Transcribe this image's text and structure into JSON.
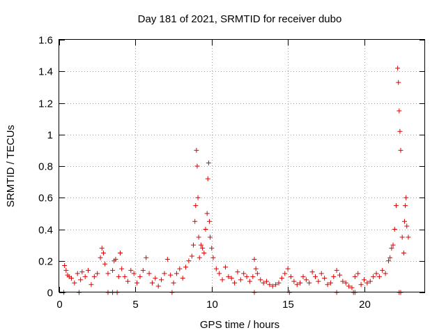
{
  "chart_data": {
    "type": "scatter",
    "title": "Day 181 of 2021, SRMTID for receiver dubo",
    "xlabel": "GPS time / hours",
    "ylabel": "SRMTID / TECUs",
    "xlim": [
      0,
      24
    ],
    "ylim": [
      0,
      1.6
    ],
    "xticks": [
      0,
      5,
      10,
      15,
      20
    ],
    "xtick_labels": [
      "0",
      "5",
      "10",
      "15",
      "20"
    ],
    "yticks": [
      0,
      0.2,
      0.4,
      0.6,
      0.8,
      1,
      1.2,
      1.4,
      1.6
    ],
    "ytick_labels": [
      "0",
      "0.2",
      "0.4",
      "0.6",
      "0.8",
      "1",
      "1.2",
      "1.4",
      "1.6"
    ],
    "grid": true,
    "marker": "plus",
    "color": "#e00000",
    "series": [
      {
        "name": "SRMTID",
        "x": [
          0.35,
          0.45,
          0.55,
          0.65,
          0.8,
          1.0,
          1.2,
          1.4,
          1.5,
          1.7,
          1.9,
          2.1,
          2.3,
          2.5,
          2.7,
          2.8,
          2.9,
          3.0,
          3.2,
          3.5,
          3.6,
          3.7,
          3.9,
          4.0,
          4.1,
          4.3,
          4.5,
          4.7,
          4.9,
          5.1,
          5.3,
          5.5,
          5.7,
          5.9,
          6.1,
          6.3,
          6.5,
          6.7,
          6.9,
          7.1,
          7.3,
          7.5,
          7.7,
          7.9,
          8.1,
          8.3,
          8.5,
          8.7,
          8.8,
          8.9,
          8.95,
          9.0,
          9.05,
          9.1,
          9.15,
          9.2,
          9.3,
          9.4,
          9.5,
          9.6,
          9.7,
          9.75,
          9.8,
          9.85,
          9.9,
          10.0,
          10.1,
          10.3,
          10.5,
          10.7,
          10.9,
          11.1,
          11.3,
          11.5,
          11.7,
          11.9,
          12.1,
          12.3,
          12.5,
          12.7,
          12.8,
          12.9,
          13.0,
          13.2,
          13.4,
          13.6,
          13.8,
          14.0,
          14.2,
          14.4,
          14.6,
          14.8,
          15.0,
          15.2,
          15.4,
          15.6,
          15.8,
          16.0,
          16.2,
          16.4,
          16.6,
          16.8,
          17.0,
          17.2,
          17.4,
          17.6,
          17.8,
          18.0,
          18.2,
          18.4,
          18.6,
          18.8,
          19.0,
          19.2,
          19.4,
          19.6,
          19.8,
          20.0,
          20.2,
          20.4,
          20.6,
          20.8,
          21.0,
          21.2,
          21.4,
          21.6,
          21.7,
          21.8,
          21.9,
          22.0,
          22.1,
          22.2,
          22.25,
          22.3,
          22.35,
          22.4,
          22.5,
          22.6,
          22.65,
          22.7,
          22.75,
          22.8,
          22.9,
          0.3,
          1.3,
          3.2,
          3.5,
          3.8,
          7.4,
          12.8,
          15.1,
          18.2,
          19.3,
          19.4,
          22.3,
          22.4
        ],
        "y": [
          0.17,
          0.14,
          0.11,
          0.1,
          0.09,
          0.06,
          0.12,
          0.08,
          0.13,
          0.1,
          0.14,
          0.05,
          0.1,
          0.12,
          0.22,
          0.28,
          0.25,
          0.18,
          0.12,
          0.14,
          0.2,
          0.21,
          0.1,
          0.25,
          0.15,
          0.1,
          0.07,
          0.14,
          0.12,
          0.06,
          0.1,
          0.14,
          0.22,
          0.12,
          0.06,
          0.09,
          0.04,
          0.08,
          0.12,
          0.21,
          0.11,
          0.06,
          0.12,
          0.15,
          0.09,
          0.16,
          0.2,
          0.23,
          0.3,
          0.45,
          0.55,
          0.9,
          0.8,
          0.6,
          0.35,
          0.22,
          0.3,
          0.28,
          0.25,
          0.4,
          0.5,
          0.72,
          0.82,
          0.45,
          0.35,
          0.28,
          0.22,
          0.15,
          0.12,
          0.08,
          0.16,
          0.1,
          0.09,
          0.06,
          0.13,
          0.08,
          0.12,
          0.1,
          0.07,
          0.1,
          0.21,
          0.15,
          0.12,
          0.08,
          0.06,
          0.07,
          0.05,
          0.04,
          0.05,
          0.06,
          0.09,
          0.12,
          0.15,
          0.1,
          0.07,
          0.05,
          0.06,
          0.1,
          0.08,
          0.06,
          0.13,
          0.1,
          0.07,
          0.12,
          0.09,
          0.05,
          0.06,
          0.1,
          0.14,
          0.11,
          0.07,
          0.06,
          0.04,
          0.03,
          0.1,
          0.12,
          0.05,
          0.08,
          0.06,
          0.07,
          0.1,
          0.12,
          0.1,
          0.14,
          0.12,
          0.2,
          0.22,
          0.28,
          0.3,
          0.4,
          0.55,
          1.42,
          1.33,
          1.15,
          1.02,
          0.9,
          0.35,
          0.25,
          0.45,
          0.55,
          0.6,
          0.42,
          0.35,
          0,
          0,
          0,
          0,
          0,
          0,
          0,
          0,
          0,
          0,
          0,
          0,
          0
        ]
      }
    ]
  }
}
